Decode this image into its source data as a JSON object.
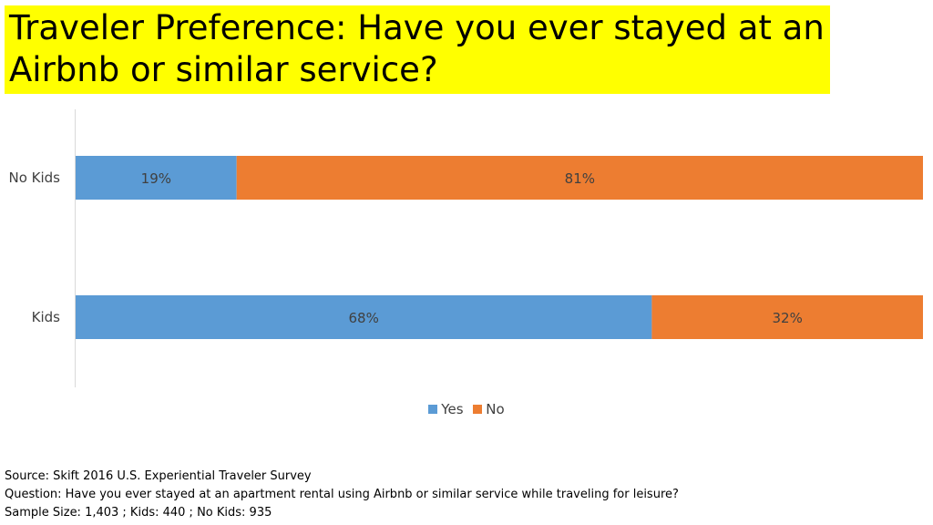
{
  "title": "Traveler Preference: Have you ever stayed at an Airbnb or similar service?",
  "colors": {
    "yes": "#5b9bd5",
    "no": "#ed7d31",
    "title_highlight": "#ffff00"
  },
  "chart_data": {
    "type": "bar",
    "orientation": "horizontal",
    "stacked": true,
    "categories": [
      "No Kids",
      "Kids"
    ],
    "series": [
      {
        "name": "Yes",
        "values": [
          19,
          68
        ],
        "labels": [
          "19%",
          "68%"
        ]
      },
      {
        "name": "No",
        "values": [
          81,
          32
        ],
        "labels": [
          "81%",
          "32%"
        ]
      }
    ],
    "xlim": [
      0,
      100
    ],
    "grid": false,
    "legend_position": "bottom"
  },
  "footer": {
    "source": "Source: Skift 2016 U.S. Experiential Traveler Survey",
    "question": "Question: Have you ever stayed at an apartment rental using Airbnb or similar service while traveling for leisure?",
    "sample": "Sample Size: 1,403 ; Kids: 440 ; No Kids: 935"
  }
}
